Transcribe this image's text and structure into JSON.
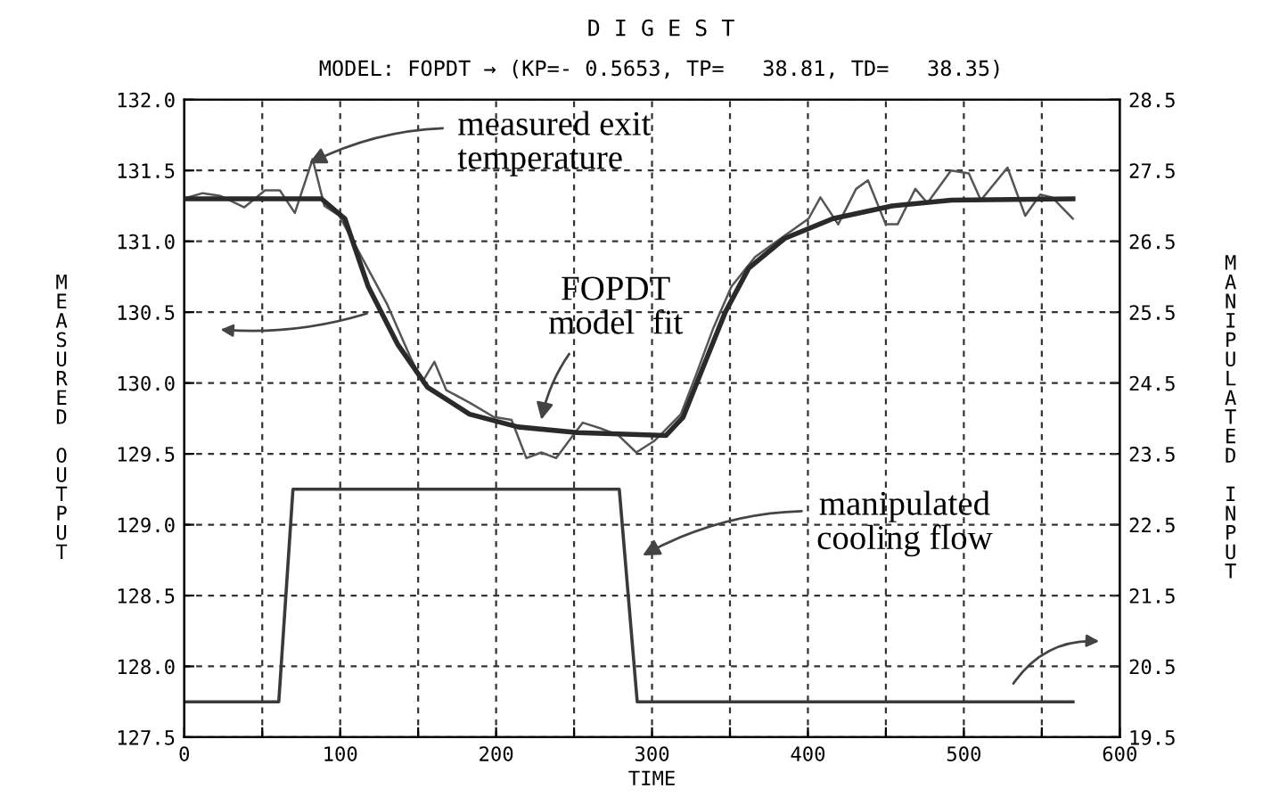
{
  "chart_data": {
    "type": "line",
    "title": "D I G E S T",
    "subtitle": "MODEL: FOPDT → (KP=- 0.5653, TP=   38.81, TD=   38.35)",
    "xlabel": "TIME",
    "ylabel": "MEASURED OUTPUT",
    "y2label": "MANIPULATED INPUT",
    "series": [
      {
        "color": "#555555",
        "x": [
          2.3,
          11.8,
          23.2,
          38.5,
          51.8,
          61.3,
          70.9,
          82.3,
          89.9,
          99.4,
          114.7,
          129.9,
          145.1,
          152.8,
          160.4,
          168,
          183.2,
          198.5,
          209.9,
          219.4,
          229,
          238.5,
          248,
          255.6,
          267,
          278.5,
          289.9,
          301.3,
          305.1,
          318.5,
          328,
          339.4,
          350.9,
          366.1,
          385.1,
          400.4,
          408,
          419.4,
          430.9,
          438.5,
          449.9,
          457.5,
          468.9,
          476.6,
          491.8,
          503.2,
          510.9,
          528,
          539.4,
          549,
          556.6,
          569.9
        ],
        "values": [
          131.31,
          131.34,
          131.32,
          131.24,
          131.36,
          131.36,
          131.2,
          131.58,
          131.25,
          131.18,
          130.87,
          130.56,
          130.18,
          130.01,
          130.15,
          129.95,
          129.86,
          129.76,
          129.74,
          129.47,
          129.51,
          129.47,
          129.61,
          129.72,
          129.68,
          129.63,
          129.51,
          129.59,
          129.63,
          129.78,
          130.05,
          130.39,
          130.68,
          130.89,
          131.04,
          131.16,
          131.31,
          131.12,
          131.37,
          131.43,
          131.12,
          131.12,
          131.37,
          131.27,
          131.5,
          131.48,
          131.29,
          131.52,
          131.18,
          131.33,
          131.31,
          131.16
        ]
      },
      {
        "color": "#2a2a2a",
        "x": [
          0,
          88,
          103,
          118,
          137,
          156,
          183,
          214,
          252,
          309,
          320,
          332,
          347,
          362,
          385,
          416,
          454,
          492,
          570
        ],
        "values": [
          131.3,
          131.3,
          131.16,
          130.68,
          130.27,
          129.97,
          129.78,
          129.69,
          129.65,
          129.63,
          129.76,
          130.09,
          130.5,
          130.81,
          131.02,
          131.16,
          131.25,
          131.29,
          131.3
        ]
      },
      {
        "color": "#3a3a3a",
        "axis": "y2",
        "x": [
          0,
          60.6,
          69.7,
          279,
          290.5,
          570
        ],
        "values": [
          20.0,
          20.0,
          23.0,
          23.0,
          20.0,
          20.0
        ]
      }
    ],
    "annotations": [
      {
        "text": "measured exit\ntemperature",
        "x": 80,
        "y": 131.55
      },
      {
        "text": "FOPDT\nmodel  fit",
        "x": 229,
        "y": 129.74
      },
      "manipulated\ncooling flow"
    ],
    "xlim": [
      0,
      600
    ],
    "xticks": [
      0,
      {
        "value": 50,
        "label": null
      },
      100,
      {
        "value": 150,
        "label": null
      },
      200,
      {
        "value": 250,
        "label": null
      },
      300,
      {
        "value": 350,
        "label": null
      },
      400,
      {
        "value": 450,
        "label": null
      },
      500,
      {
        "value": 550,
        "label": null
      },
      600
    ],
    "ylim": [
      127.5,
      132.0
    ],
    "yticks": [
      127.5,
      {
        "value": 128,
        "label": "128.0"
      },
      128.5,
      {
        "value": 129,
        "label": "129.0"
      },
      129.5,
      {
        "value": 130,
        "label": "130.0"
      },
      130.5,
      {
        "value": 131,
        "label": "131.0"
      },
      131.5,
      {
        "value": 132,
        "label": "132.0"
      }
    ],
    "y2lim": [
      19.5,
      28.5
    ],
    "y2ticks": [
      19.5,
      20.5,
      21.5,
      22.5,
      23.5,
      24.5,
      25.5,
      26.5,
      27.5,
      28.5
    ],
    "grid": true,
    "line_style": "solid",
    "marker": "none"
  }
}
